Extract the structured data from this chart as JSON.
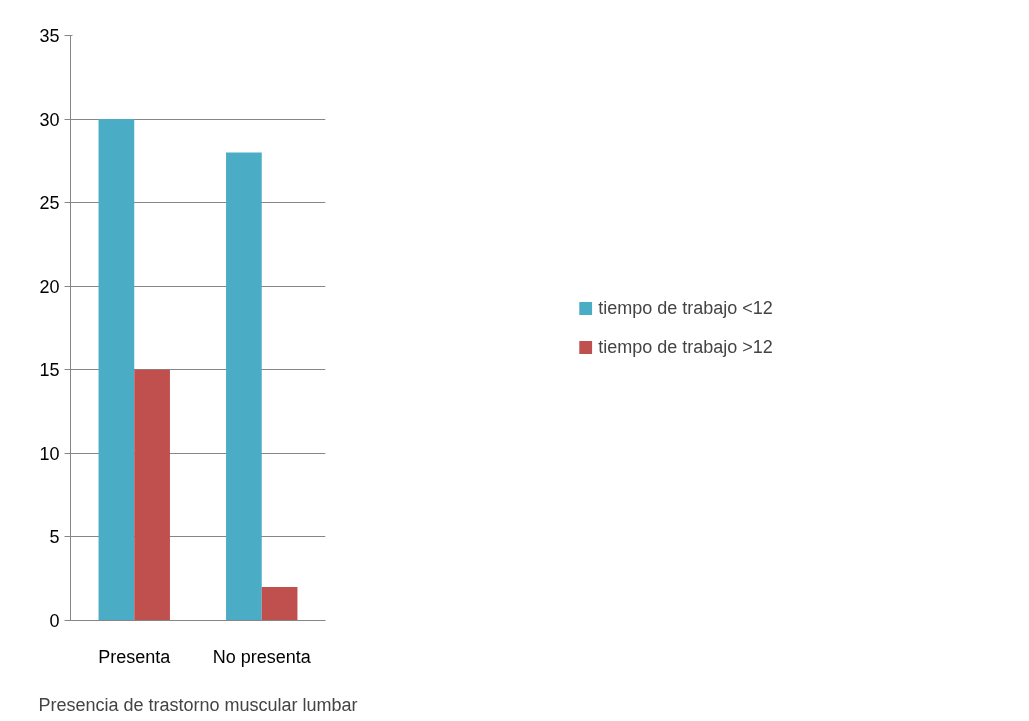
{
  "chart_data": {
    "type": "bar",
    "xlabel": "Presencia de trastorno muscular lumbar",
    "categories": [
      "Presenta",
      "No presenta"
    ],
    "series": [
      {
        "name": "tiempo de trabajo <12",
        "color": "#4bacc6",
        "values": [
          30,
          28
        ]
      },
      {
        "name": "tiempo de trabajo >12",
        "color": "#c0504d",
        "values": [
          15,
          2
        ]
      }
    ],
    "ylim": [
      0,
      35
    ],
    "yticks": [
      0,
      5,
      10,
      15,
      20,
      25,
      30,
      35
    ],
    "grid": "y",
    "legend": "right"
  }
}
